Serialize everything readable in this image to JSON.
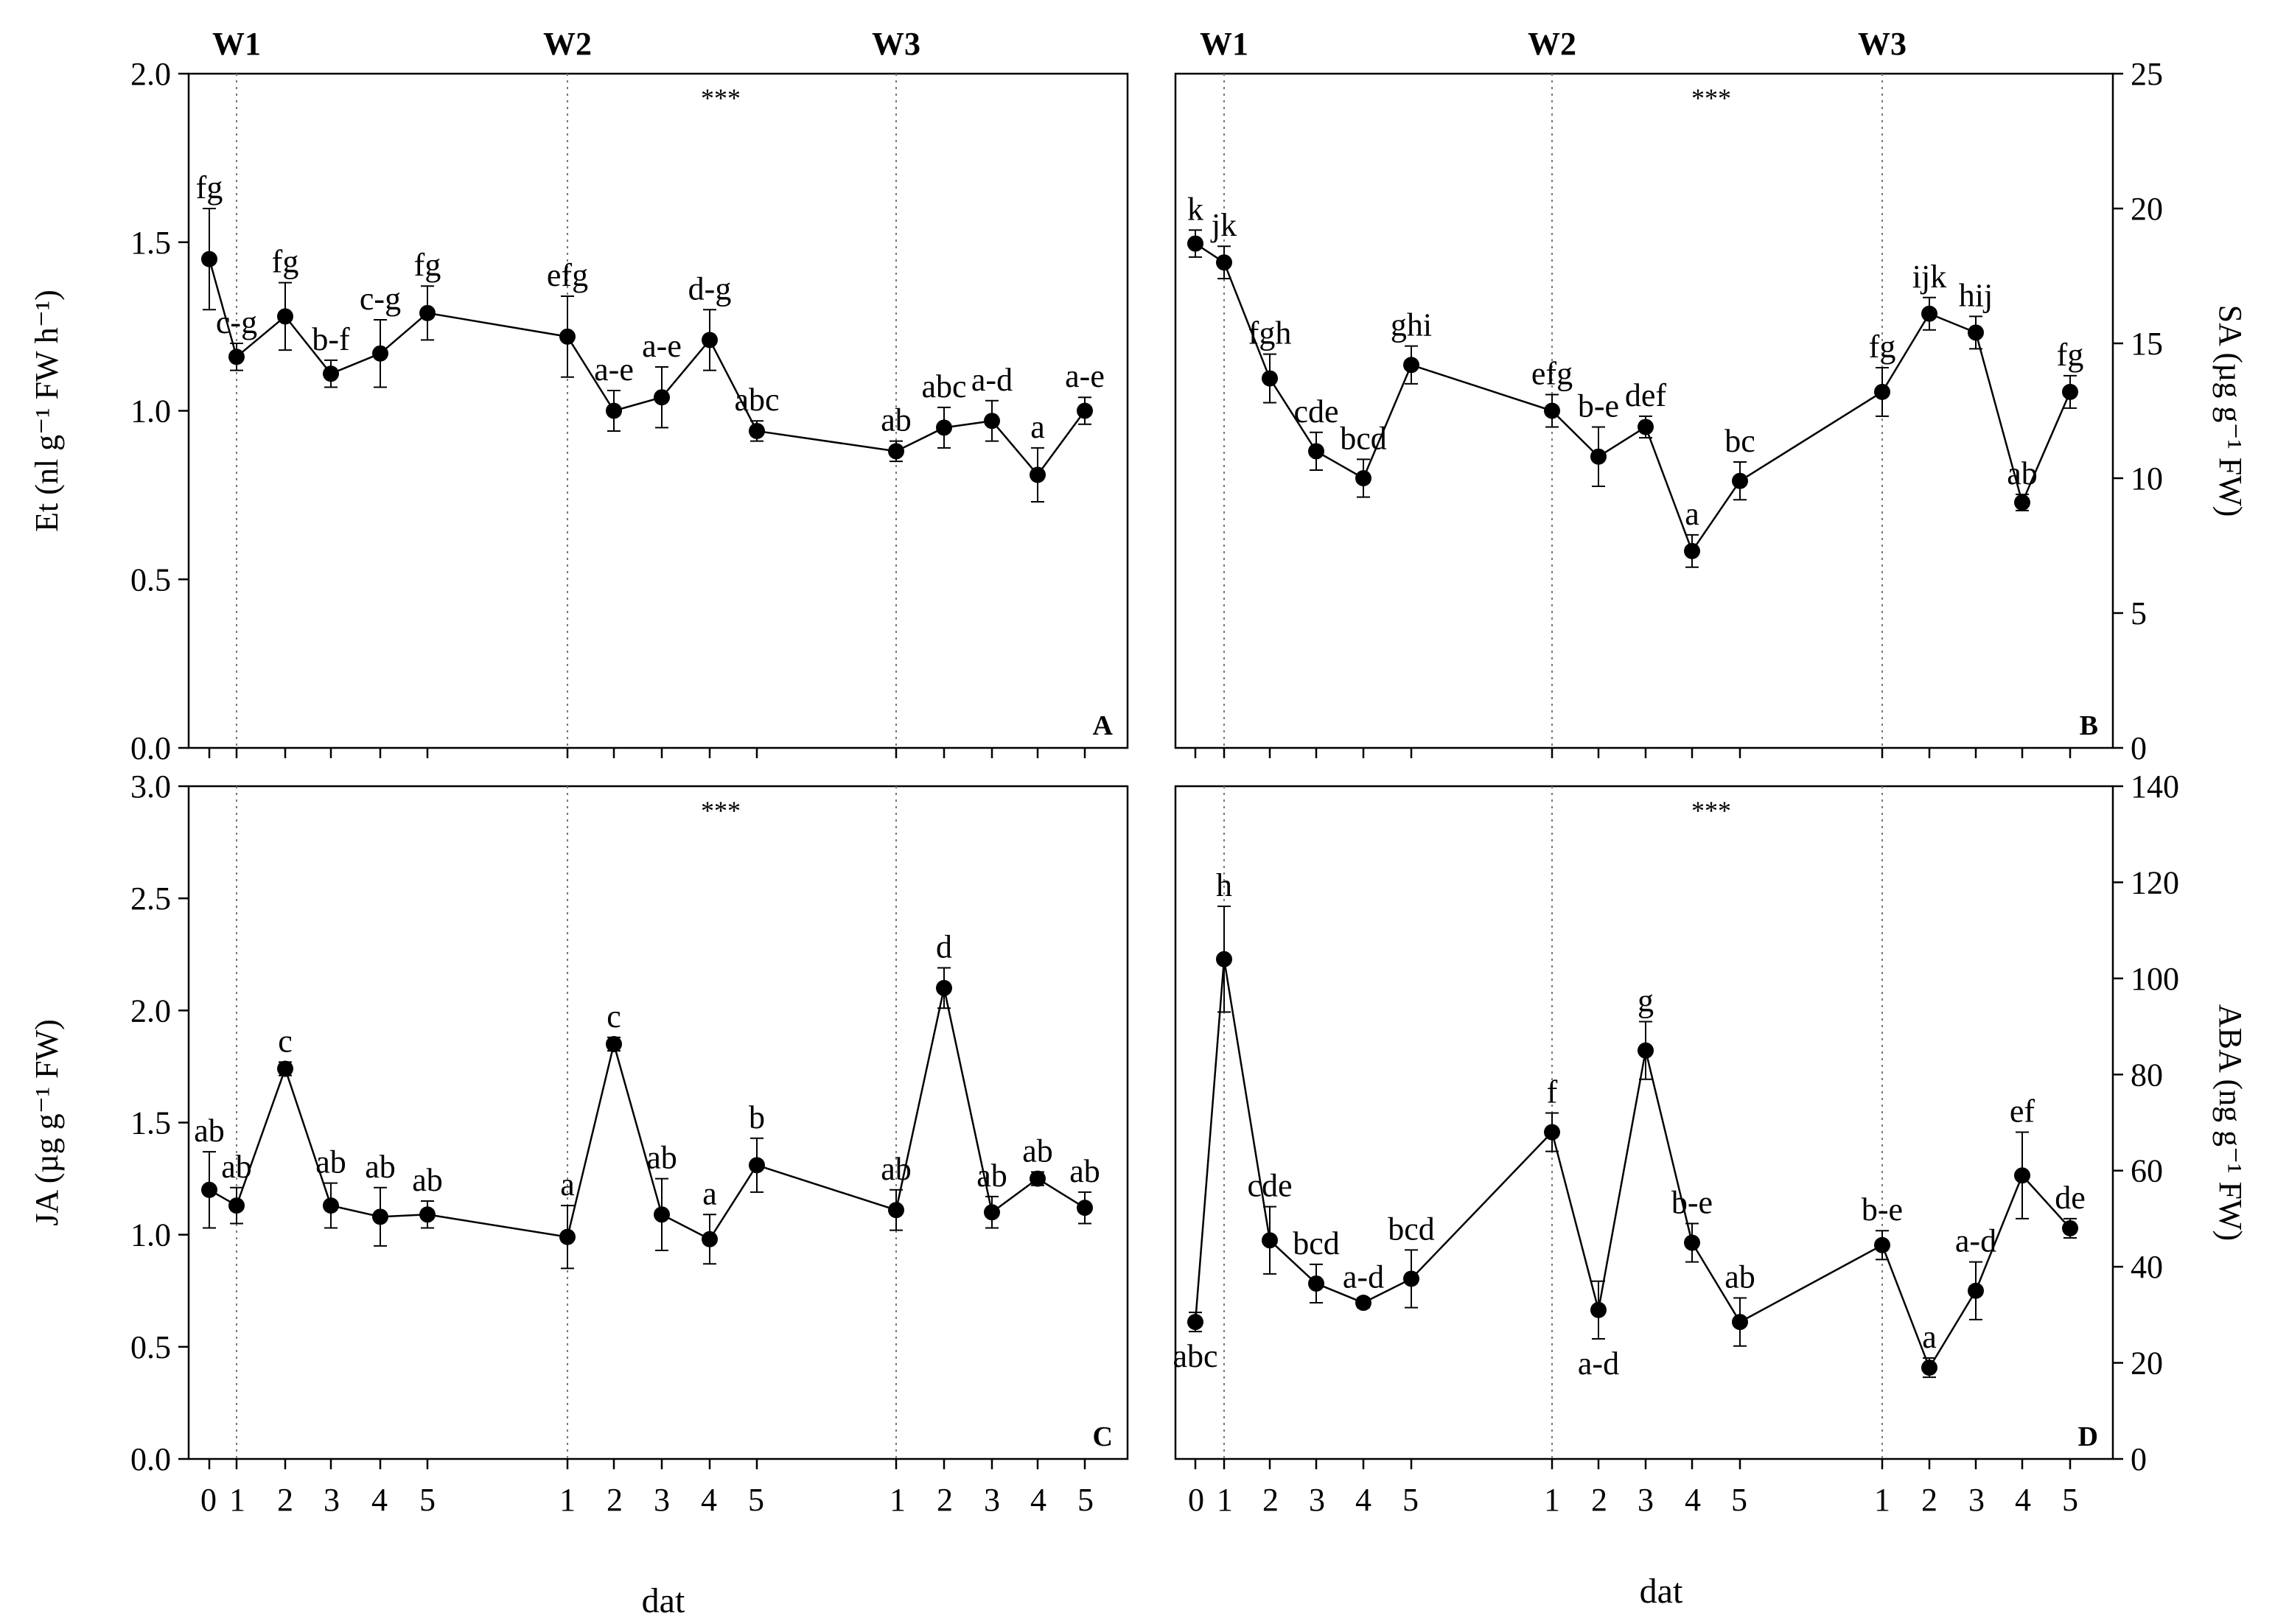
{
  "figure": {
    "x_label_left": "dat",
    "x_label_right": "dat",
    "x_tick_labels": [
      "0",
      "1",
      "2",
      "3",
      "4",
      "5",
      "1",
      "2",
      "3",
      "4",
      "5",
      "1",
      "2",
      "3",
      "4",
      "5"
    ],
    "significance": "***"
  },
  "chart_data": [
    {
      "type": "line",
      "panel": "A",
      "ylabel": "Et (nl g⁻¹ FW h⁻¹)",
      "axis_side": "left",
      "ylim": [
        0,
        2.0
      ],
      "yticks": [
        0,
        0.5,
        1.0,
        1.5,
        2.0
      ],
      "ytick_labels": [
        "0.0",
        "0.5",
        "1.0",
        "1.5",
        "2.0"
      ],
      "phases": [
        "W1",
        "W2",
        "W3"
      ],
      "significance": "***",
      "x": [
        "0",
        "1",
        "2",
        "3",
        "4",
        "5",
        "1",
        "2",
        "3",
        "4",
        "5",
        "1",
        "2",
        "3",
        "4",
        "5"
      ],
      "values": [
        1.45,
        1.16,
        1.28,
        1.11,
        1.17,
        1.29,
        1.22,
        1.0,
        1.04,
        1.21,
        0.94,
        0.88,
        0.95,
        0.97,
        0.81,
        1.0
      ],
      "errors": [
        0.15,
        0.04,
        0.1,
        0.04,
        0.1,
        0.08,
        0.12,
        0.06,
        0.09,
        0.09,
        0.03,
        0.03,
        0.06,
        0.06,
        0.08,
        0.04
      ],
      "letters": [
        "fg",
        "c-g",
        "fg",
        "b-f",
        "c-g",
        "fg",
        "efg",
        "a-e",
        "a-e",
        "d-g",
        "abc",
        "ab",
        "abc",
        "a-d",
        "a",
        "a-e"
      ],
      "letter_pos": [
        "above",
        "above",
        "above",
        "above",
        "above",
        "above",
        "above",
        "above",
        "above",
        "above",
        "above",
        "above",
        "above",
        "above",
        "above",
        "above"
      ]
    },
    {
      "type": "line",
      "panel": "B",
      "ylabel": "SA (µg g⁻¹ FW)",
      "axis_side": "right",
      "ylim": [
        0,
        25
      ],
      "yticks": [
        0,
        5,
        10,
        15,
        20,
        25
      ],
      "ytick_labels": [
        "0",
        "5",
        "10",
        "15",
        "20",
        "25"
      ],
      "phases": [
        "W1",
        "W2",
        "W3"
      ],
      "significance": "***",
      "x": [
        "0",
        "1",
        "2",
        "3",
        "4",
        "5",
        "1",
        "2",
        "3",
        "4",
        "5",
        "1",
        "2",
        "3",
        "4",
        "5"
      ],
      "values": [
        18.7,
        18.0,
        13.7,
        11.0,
        10.0,
        14.2,
        12.5,
        10.8,
        11.9,
        7.3,
        9.9,
        13.2,
        16.1,
        15.4,
        9.1,
        13.2
      ],
      "errors": [
        0.5,
        0.6,
        0.9,
        0.7,
        0.7,
        0.7,
        0.6,
        1.1,
        0.4,
        0.6,
        0.7,
        0.9,
        0.6,
        0.6,
        0.3,
        0.6
      ],
      "letters": [
        "k",
        "jk",
        "fgh",
        "cde",
        "bcd",
        "ghi",
        "efg",
        "b-e",
        "def",
        "a",
        "bc",
        "fg",
        "ijk",
        "hij",
        "ab",
        "fg"
      ],
      "letter_pos": [
        "above",
        "above",
        "above",
        "above",
        "above",
        "above",
        "above",
        "above",
        "above",
        "above",
        "above",
        "above",
        "above",
        "above",
        "above",
        "above"
      ]
    },
    {
      "type": "line",
      "panel": "C",
      "ylabel": "JA (µg g⁻¹ FW)",
      "axis_side": "left",
      "ylim": [
        0,
        3.0
      ],
      "yticks": [
        0,
        0.5,
        1.0,
        1.5,
        2.0,
        2.5,
        3.0
      ],
      "ytick_labels": [
        "0.0",
        "0.5",
        "1.0",
        "1.5",
        "2.0",
        "2.5",
        "3.0"
      ],
      "phases": [
        "W1",
        "W2",
        "W3"
      ],
      "significance": "***",
      "x": [
        "0",
        "1",
        "2",
        "3",
        "4",
        "5",
        "1",
        "2",
        "3",
        "4",
        "5",
        "1",
        "2",
        "3",
        "4",
        "5"
      ],
      "values": [
        1.2,
        1.13,
        1.74,
        1.13,
        1.08,
        1.09,
        0.99,
        1.85,
        1.09,
        0.98,
        1.31,
        1.11,
        2.1,
        1.1,
        1.25,
        1.12
      ],
      "errors": [
        0.17,
        0.08,
        0.03,
        0.1,
        0.13,
        0.06,
        0.14,
        0.03,
        0.16,
        0.11,
        0.12,
        0.09,
        0.09,
        0.07,
        0.03,
        0.07
      ],
      "letters": [
        "ab",
        "ab",
        "c",
        "ab",
        "ab",
        "ab",
        "a",
        "c",
        "ab",
        "a",
        "b",
        "ab",
        "d",
        "ab",
        "ab",
        "ab"
      ],
      "letter_pos": [
        "above",
        "above",
        "above",
        "above",
        "above",
        "above",
        "above",
        "above",
        "above",
        "above",
        "above",
        "above",
        "above",
        "above",
        "above",
        "above"
      ]
    },
    {
      "type": "line",
      "panel": "D",
      "ylabel": "ABA (ng g⁻¹ FW)",
      "axis_side": "right",
      "ylim": [
        0,
        140
      ],
      "yticks": [
        0,
        20,
        40,
        60,
        80,
        100,
        120,
        140
      ],
      "ytick_labels": [
        "0",
        "20",
        "40",
        "60",
        "80",
        "100",
        "120",
        "140"
      ],
      "phases": [
        "",
        "",
        ""
      ],
      "significance": "***",
      "x": [
        "0",
        "1",
        "2",
        "3",
        "4",
        "5",
        "1",
        "2",
        "3",
        "4",
        "5",
        "1",
        "2",
        "3",
        "4",
        "5"
      ],
      "values": [
        28.5,
        104,
        45.5,
        36.5,
        32.5,
        37.5,
        68,
        31,
        85,
        45,
        28.5,
        44.5,
        19,
        35,
        59,
        48
      ],
      "errors": [
        2,
        11,
        7,
        4,
        1,
        6,
        4,
        6,
        6,
        4,
        5,
        3,
        2,
        6,
        9,
        2
      ],
      "letters": [
        "abc",
        "h",
        "cde",
        "bcd",
        "a-d",
        "bcd",
        "f",
        "a-d",
        "g",
        "b-e",
        "ab",
        "b-e",
        "a",
        "a-d",
        "ef",
        "de"
      ],
      "letter_pos": [
        "below",
        "above",
        "above",
        "above",
        "above",
        "above",
        "above",
        "below",
        "above",
        "above",
        "above",
        "above",
        "above",
        "above",
        "above",
        "above"
      ]
    }
  ]
}
